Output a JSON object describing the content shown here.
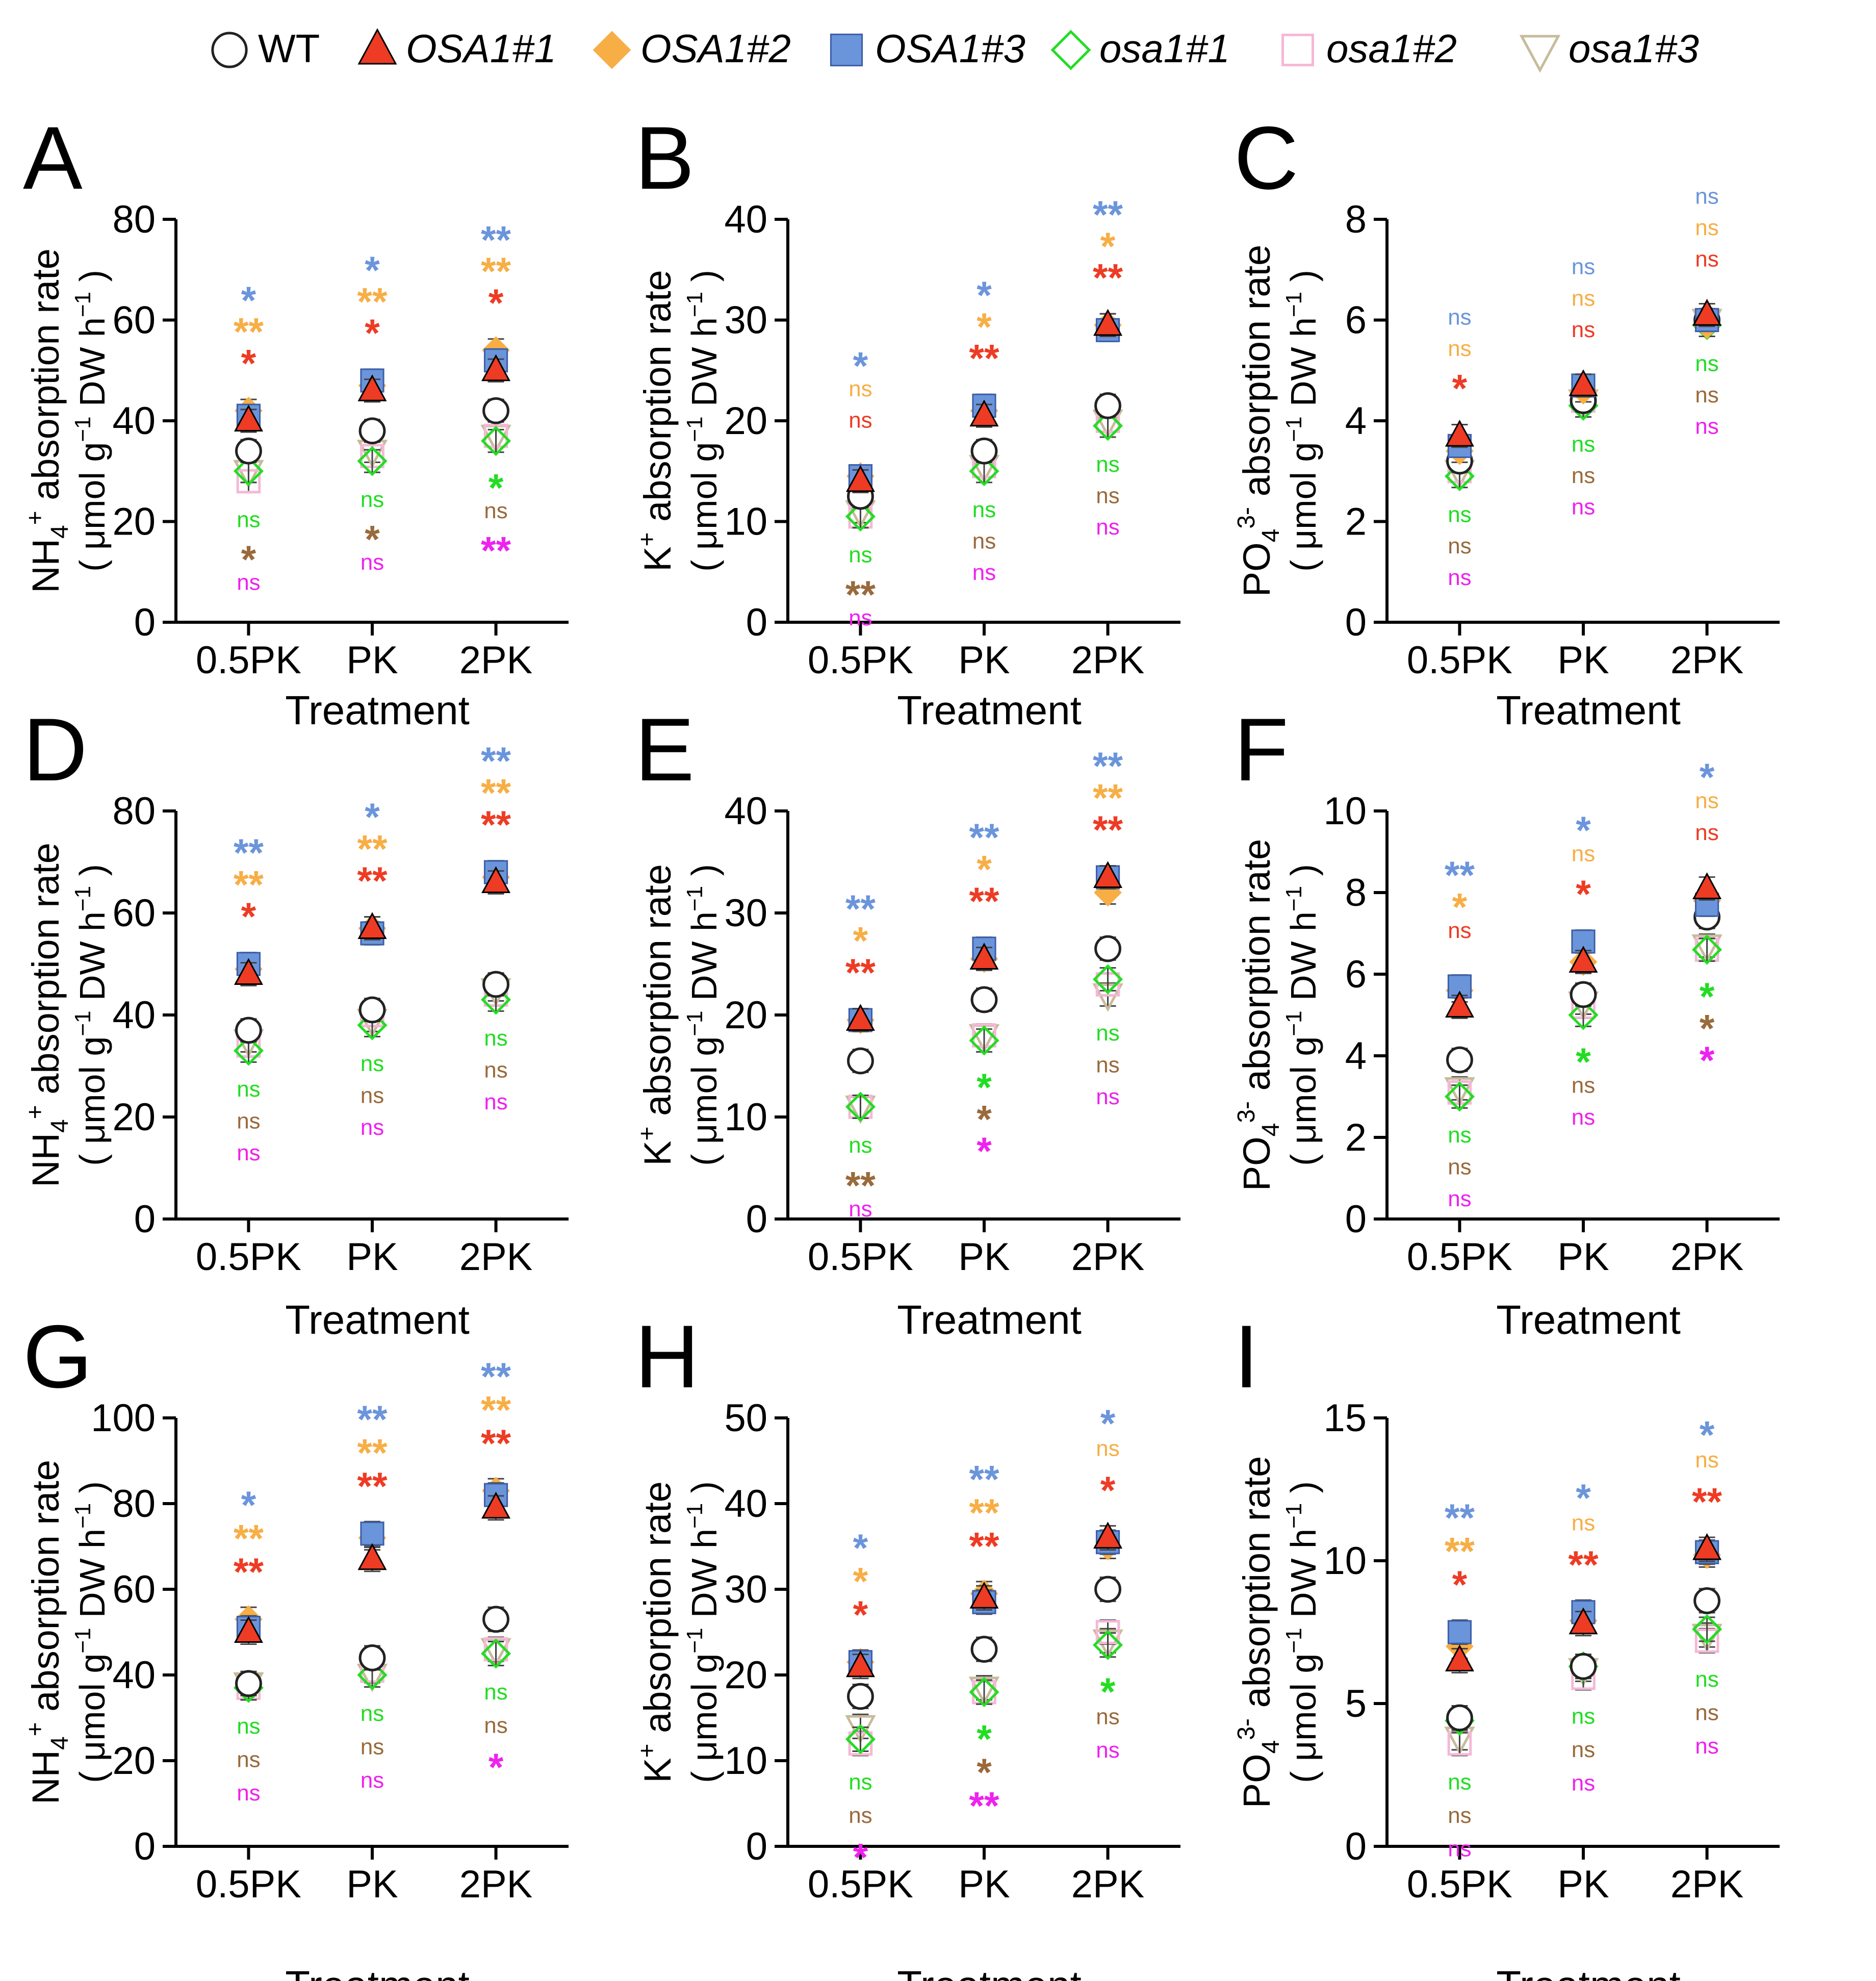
{
  "legend": [
    {
      "label": "WT",
      "marker": "circle-open",
      "color": "#222222",
      "italic": false
    },
    {
      "label": "OSA1#1",
      "marker": "triangle",
      "color": "#ee3b24",
      "italic": true
    },
    {
      "label": "OSA1#2",
      "marker": "diamond",
      "color": "#f7ae45",
      "italic": true
    },
    {
      "label": "OSA1#3",
      "marker": "square",
      "color": "#6b95db",
      "italic": true
    },
    {
      "label": "osa1#1",
      "marker": "diamond-open",
      "color": "#22dd22",
      "italic": true
    },
    {
      "label": "osa1#2",
      "marker": "square-open",
      "color": "#f5b8d6",
      "italic": true
    },
    {
      "label": "osa1#3",
      "marker": "triangle-down-open",
      "color": "#c7bb9b",
      "italic": true
    }
  ],
  "sigColors": [
    "#6b95db",
    "#f7ae45",
    "#ee3b24",
    "#22dd22",
    "#9a6a3c",
    "#ee22ee"
  ],
  "chart_data": [
    {
      "panel": "A",
      "type": "scatter",
      "ion": "NH4",
      "xlabel": "Treatment",
      "categories": [
        "0.5PK",
        "PK",
        "2PK"
      ],
      "ylim": [
        0,
        80
      ],
      "yticks": [
        0,
        20,
        40,
        60,
        80
      ],
      "values": {
        "WT": [
          34,
          38,
          42
        ],
        "OSA1#1": [
          40,
          46,
          50
        ],
        "OSA1#2": [
          42,
          47,
          54
        ],
        "OSA1#3": [
          41,
          48,
          52
        ],
        "osa1#1": [
          30,
          32,
          36
        ],
        "osa1#2": [
          28,
          33,
          37
        ],
        "osa1#3": [
          30,
          34,
          37
        ]
      },
      "sig": [
        [
          "*",
          "**",
          "*",
          "ns",
          "*",
          "ns"
        ],
        [
          "*",
          "**",
          "*",
          "ns",
          "*",
          "ns"
        ],
        [
          "**",
          "**",
          "*",
          "*",
          "ns",
          "**"
        ]
      ]
    },
    {
      "panel": "B",
      "type": "scatter",
      "ion": "K",
      "xlabel": "Treatment",
      "categories": [
        "0.5PK",
        "PK",
        "2PK"
      ],
      "ylim": [
        0,
        40
      ],
      "yticks": [
        0,
        10,
        20,
        30,
        40
      ],
      "values": {
        "WT": [
          12.5,
          17,
          21.5
        ],
        "OSA1#1": [
          14,
          20.5,
          29.5
        ],
        "OSA1#2": [
          14.5,
          21,
          29.5
        ],
        "OSA1#3": [
          14.5,
          21.5,
          29
        ],
        "osa1#1": [
          10.5,
          15,
          19.5
        ],
        "osa1#2": [
          10.5,
          15.5,
          20
        ],
        "osa1#3": [
          11,
          15.5,
          20
        ]
      },
      "sig": [
        [
          "*",
          "ns",
          "ns",
          "ns",
          "**",
          "ns"
        ],
        [
          "*",
          "*",
          "**",
          "ns",
          "ns",
          "ns"
        ],
        [
          "**",
          "*",
          "**",
          "ns",
          "ns",
          "ns"
        ]
      ]
    },
    {
      "panel": "C",
      "type": "scatter",
      "ion": "PO4",
      "xlabel": "Treatment",
      "categories": [
        "0.5PK",
        "PK",
        "2PK"
      ],
      "ylim": [
        0,
        8
      ],
      "yticks": [
        0,
        2,
        4,
        6,
        8
      ],
      "values": {
        "WT": [
          3.2,
          4.4,
          6.0
        ],
        "OSA1#1": [
          3.7,
          4.7,
          6.1
        ],
        "OSA1#2": [
          3.4,
          4.6,
          5.9
        ],
        "OSA1#3": [
          3.5,
          4.7,
          6.0
        ],
        "osa1#1": [
          2.9,
          4.3,
          5.9
        ],
        "osa1#2": [
          3.0,
          4.4,
          6.0
        ],
        "osa1#3": [
          3.0,
          4.4,
          6.0
        ]
      },
      "sig": [
        [
          "ns",
          "ns",
          "*",
          "ns",
          "ns",
          "ns"
        ],
        [
          "ns",
          "ns",
          "ns",
          "ns",
          "ns",
          "ns"
        ],
        [
          "ns",
          "ns",
          "ns",
          "ns",
          "ns",
          "ns"
        ]
      ]
    },
    {
      "panel": "D",
      "type": "scatter",
      "ion": "NH4",
      "xlabel": "Treatment",
      "categories": [
        "0.5PK",
        "PK",
        "2PK"
      ],
      "ylim": [
        0,
        80
      ],
      "yticks": [
        0,
        20,
        40,
        60,
        80
      ],
      "values": {
        "WT": [
          37,
          41,
          46
        ],
        "OSA1#1": [
          48,
          57,
          66
        ],
        "OSA1#2": [
          49,
          57,
          67
        ],
        "OSA1#3": [
          50,
          56,
          68
        ],
        "osa1#1": [
          33,
          38,
          43
        ],
        "osa1#2": [
          34,
          40,
          44
        ],
        "osa1#3": [
          35,
          39,
          45
        ]
      },
      "sig": [
        [
          "**",
          "**",
          "*",
          "ns",
          "ns",
          "ns"
        ],
        [
          "*",
          "**",
          "**",
          "ns",
          "ns",
          "ns"
        ],
        [
          "**",
          "**",
          "**",
          "ns",
          "ns",
          "ns"
        ]
      ]
    },
    {
      "panel": "E",
      "type": "scatter",
      "ion": "K",
      "xlabel": "Treatment",
      "categories": [
        "0.5PK",
        "PK",
        "2PK"
      ],
      "ylim": [
        0,
        40
      ],
      "yticks": [
        0,
        10,
        20,
        30,
        40
      ],
      "values": {
        "WT": [
          15.5,
          21.5,
          26.5
        ],
        "OSA1#1": [
          19.5,
          25.5,
          33.5
        ],
        "OSA1#2": [
          19.5,
          25.5,
          32
        ],
        "OSA1#3": [
          19.5,
          26.5,
          33.5
        ],
        "osa1#1": [
          11,
          17.5,
          23.5
        ],
        "osa1#2": [
          11,
          18,
          23
        ],
        "osa1#3": [
          11,
          18,
          22
        ]
      },
      "sig": [
        [
          "**",
          "*",
          "**",
          "ns",
          "**",
          "ns"
        ],
        [
          "**",
          "*",
          "**",
          "*",
          "*",
          "*"
        ],
        [
          "**",
          "**",
          "**",
          "ns",
          "ns",
          "ns"
        ]
      ]
    },
    {
      "panel": "F",
      "type": "scatter",
      "ion": "PO4",
      "xlabel": "Treatment",
      "categories": [
        "0.5PK",
        "PK",
        "2PK"
      ],
      "ylim": [
        0,
        10
      ],
      "yticks": [
        0,
        2,
        4,
        6,
        8,
        10
      ],
      "values": {
        "WT": [
          3.9,
          5.5,
          7.4
        ],
        "OSA1#1": [
          5.2,
          6.3,
          8.1
        ],
        "OSA1#2": [
          5.6,
          6.3,
          7.8
        ],
        "OSA1#3": [
          5.7,
          6.8,
          7.7
        ],
        "osa1#1": [
          3.0,
          5.0,
          6.6
        ],
        "osa1#2": [
          3.1,
          5.2,
          6.6
        ],
        "osa1#3": [
          3.2,
          5.3,
          6.7
        ]
      },
      "sig": [
        [
          "**",
          "*",
          "ns",
          "ns",
          "ns",
          "ns"
        ],
        [
          "*",
          "ns",
          "*",
          "*",
          "ns",
          "ns"
        ],
        [
          "*",
          "ns",
          "ns",
          "*",
          "*",
          "*"
        ]
      ]
    },
    {
      "panel": "G",
      "type": "scatter",
      "ion": "NH4",
      "xlabel": "Treatment",
      "categories": [
        "0.5PK",
        "PK",
        "2PK"
      ],
      "ylim": [
        0,
        100
      ],
      "yticks": [
        0,
        20,
        40,
        60,
        80,
        100
      ],
      "values": {
        "WT": [
          38,
          44,
          53
        ],
        "OSA1#1": [
          50,
          67,
          79
        ],
        "OSA1#2": [
          53,
          72,
          83
        ],
        "OSA1#3": [
          51,
          73,
          82
        ],
        "osa1#1": [
          37,
          40,
          45
        ],
        "osa1#2": [
          37,
          41,
          46
        ],
        "osa1#3": [
          38,
          40,
          46
        ]
      },
      "sig": [
        [
          "*",
          "**",
          "**",
          "ns",
          "ns",
          "ns"
        ],
        [
          "**",
          "**",
          "**",
          "ns",
          "ns",
          "ns"
        ],
        [
          "**",
          "**",
          "**",
          "ns",
          "ns",
          "*"
        ]
      ]
    },
    {
      "panel": "H",
      "type": "scatter",
      "ion": "K",
      "xlabel": "Treatment",
      "categories": [
        "0.5PK",
        "PK",
        "2PK"
      ],
      "ylim": [
        0,
        50
      ],
      "yticks": [
        0,
        10,
        20,
        30,
        40,
        50
      ],
      "values": {
        "WT": [
          17.5,
          23,
          30
        ],
        "OSA1#1": [
          21,
          29,
          36
        ],
        "OSA1#2": [
          21.5,
          29.5,
          35
        ],
        "OSA1#3": [
          21.5,
          28.5,
          35.5
        ],
        "osa1#1": [
          12.5,
          18,
          23.5
        ],
        "osa1#2": [
          12,
          18,
          25
        ],
        "osa1#3": [
          14,
          18.5,
          24
        ]
      },
      "sig": [
        [
          "*",
          "*",
          "*",
          "ns",
          "ns",
          "*"
        ],
        [
          "**",
          "**",
          "**",
          "*",
          "*",
          "**"
        ],
        [
          "*",
          "ns",
          "*",
          "*",
          "ns",
          "ns"
        ]
      ]
    },
    {
      "panel": "I",
      "type": "scatter",
      "ion": "PO4",
      "xlabel": "Treatment",
      "categories": [
        "0.5PK",
        "PK",
        "2PK"
      ],
      "ylim": [
        0,
        15
      ],
      "yticks": [
        0,
        5,
        10,
        15
      ],
      "values": {
        "WT": [
          4.5,
          6.3,
          8.6
        ],
        "OSA1#1": [
          6.5,
          7.8,
          10.4
        ],
        "OSA1#2": [
          7.0,
          7.9,
          10.2
        ],
        "OSA1#3": [
          7.5,
          8.2,
          10.3
        ],
        "osa1#1": [
          4.4,
          6.3,
          7.6
        ],
        "osa1#2": [
          3.6,
          5.9,
          7.2
        ],
        "osa1#3": [
          3.8,
          6.2,
          7.4
        ]
      },
      "sig": [
        [
          "**",
          "**",
          "*",
          "ns",
          "ns",
          "ns"
        ],
        [
          "*",
          "ns",
          "**",
          "ns",
          "ns",
          "ns"
        ],
        [
          "*",
          "ns",
          "**",
          "ns",
          "ns",
          "ns"
        ]
      ]
    }
  ]
}
